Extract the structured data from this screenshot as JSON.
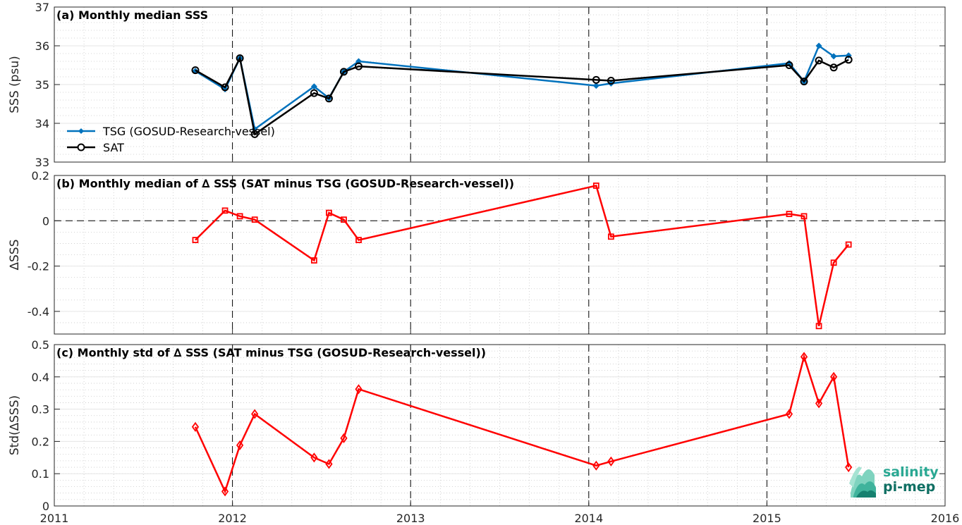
{
  "x_axis": {
    "tick_labels": [
      "2011",
      "2012",
      "2013",
      "2014",
      "2015",
      "2016"
    ],
    "xlim": [
      2011,
      2016
    ],
    "dashed_year_lines": [
      2012,
      2013,
      2014,
      2015
    ],
    "grid": true
  },
  "chart_data": [
    {
      "type": "line",
      "title": "(a) Monthly median SSS",
      "ylabel": "SSS (psu)",
      "ylim": [
        33,
        37
      ],
      "ytick_labels": [
        "33",
        "34",
        "35",
        "36",
        "37"
      ],
      "legend": {
        "placement": "lower-left",
        "entries": [
          "TSG (GOSUD-Research-vessel)",
          "SAT"
        ]
      },
      "series": [
        {
          "name": "TSG (GOSUD-Research-vessel)",
          "color": "#0072bd",
          "marker": "filled-diamond",
          "x": [
            "2011-10",
            "2011-12",
            "2012-01",
            "2012-02",
            "2012-06",
            "2012-07",
            "2012-08",
            "2012-09",
            "2014-01",
            "2014-02",
            "2015-02",
            "2015-03",
            "2015-04",
            "2015-05",
            "2015-06"
          ],
          "values": [
            35.35,
            34.88,
            35.68,
            33.85,
            34.95,
            34.65,
            35.33,
            35.6,
            34.97,
            35.03,
            35.55,
            35.08,
            36.0,
            35.73,
            35.75
          ]
        },
        {
          "name": "SAT",
          "color": "#000000",
          "marker": "open-circle",
          "x": [
            "2011-10",
            "2011-12",
            "2012-01",
            "2012-02",
            "2012-06",
            "2012-07",
            "2012-08",
            "2012-09",
            "2014-01",
            "2014-02",
            "2015-02",
            "2015-03",
            "2015-04",
            "2015-05",
            "2015-06"
          ],
          "values": [
            35.37,
            34.93,
            35.68,
            33.72,
            34.78,
            34.64,
            35.33,
            35.47,
            35.12,
            35.1,
            35.5,
            35.08,
            35.62,
            35.44,
            35.64
          ]
        }
      ]
    },
    {
      "type": "line",
      "title": "(b) Monthly median of ∆ SSS (SAT minus TSG (GOSUD-Research-vessel))",
      "ylabel": "∆SSS",
      "ylim": [
        -0.5,
        0.2
      ],
      "ytick_labels": [
        "-0.4",
        "-0.2",
        "0",
        "0.2"
      ],
      "zero_line": "dashed",
      "series": [
        {
          "color": "#ff0000",
          "marker": "open-square",
          "x": [
            "2011-10",
            "2011-12",
            "2012-01",
            "2012-02",
            "2012-06",
            "2012-07",
            "2012-08",
            "2012-09",
            "2014-01",
            "2014-02",
            "2015-02",
            "2015-03",
            "2015-04",
            "2015-05",
            "2015-06"
          ],
          "values": [
            -0.085,
            0.045,
            0.02,
            0.005,
            -0.175,
            0.035,
            0.005,
            -0.085,
            0.155,
            -0.07,
            0.03,
            0.02,
            -0.465,
            -0.185,
            -0.105
          ]
        }
      ]
    },
    {
      "type": "line",
      "title": "(c) Monthly std of ∆ SSS (SAT minus TSG (GOSUD-Research-vessel))",
      "ylabel": "Std(∆SSS)",
      "ylim": [
        0,
        0.5
      ],
      "ytick_labels": [
        "0",
        "0.1",
        "0.2",
        "0.3",
        "0.4",
        "0.5"
      ],
      "series": [
        {
          "color": "#ff0000",
          "marker": "open-diamond",
          "x": [
            "2011-10",
            "2011-12",
            "2012-01",
            "2012-02",
            "2012-06",
            "2012-07",
            "2012-08",
            "2012-09",
            "2014-01",
            "2014-02",
            "2015-02",
            "2015-03",
            "2015-04",
            "2015-05",
            "2015-06"
          ],
          "values": [
            0.245,
            0.045,
            0.188,
            0.285,
            0.15,
            0.13,
            0.21,
            0.362,
            0.125,
            0.138,
            0.285,
            0.462,
            0.318,
            0.4,
            0.12
          ]
        }
      ]
    }
  ],
  "logo": {
    "line1": "salinity",
    "line2": "pi-mep",
    "color_light": "#2aa893",
    "color_dark": "#0f6f63"
  }
}
